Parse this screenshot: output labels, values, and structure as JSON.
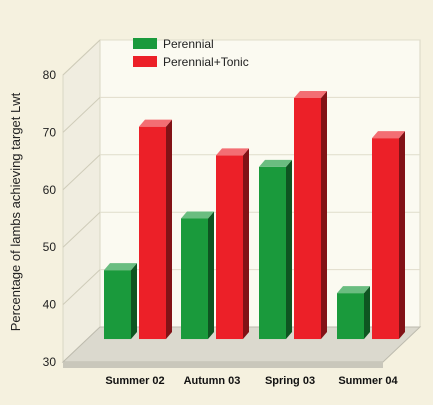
{
  "chart_data": {
    "type": "bar",
    "title": "",
    "xlabel": "",
    "ylabel": "Percentage of lambs achieving target Lwt",
    "ylim": [
      30,
      80
    ],
    "yticks": [
      "30",
      "40",
      "50",
      "60",
      "70",
      "80"
    ],
    "grid": true,
    "legend_position": "top-left",
    "categories": [
      "Summer 02",
      "Autumn 03",
      "Spring 03",
      "Summer 04"
    ],
    "series": [
      {
        "name": "Perennial",
        "color": "#1a9a3c",
        "values": [
          46,
          55,
          64,
          42
        ]
      },
      {
        "name": "Perennial+Tonic",
        "color": "#ec2028",
        "values": [
          71,
          66,
          76,
          69
        ]
      }
    ]
  }
}
